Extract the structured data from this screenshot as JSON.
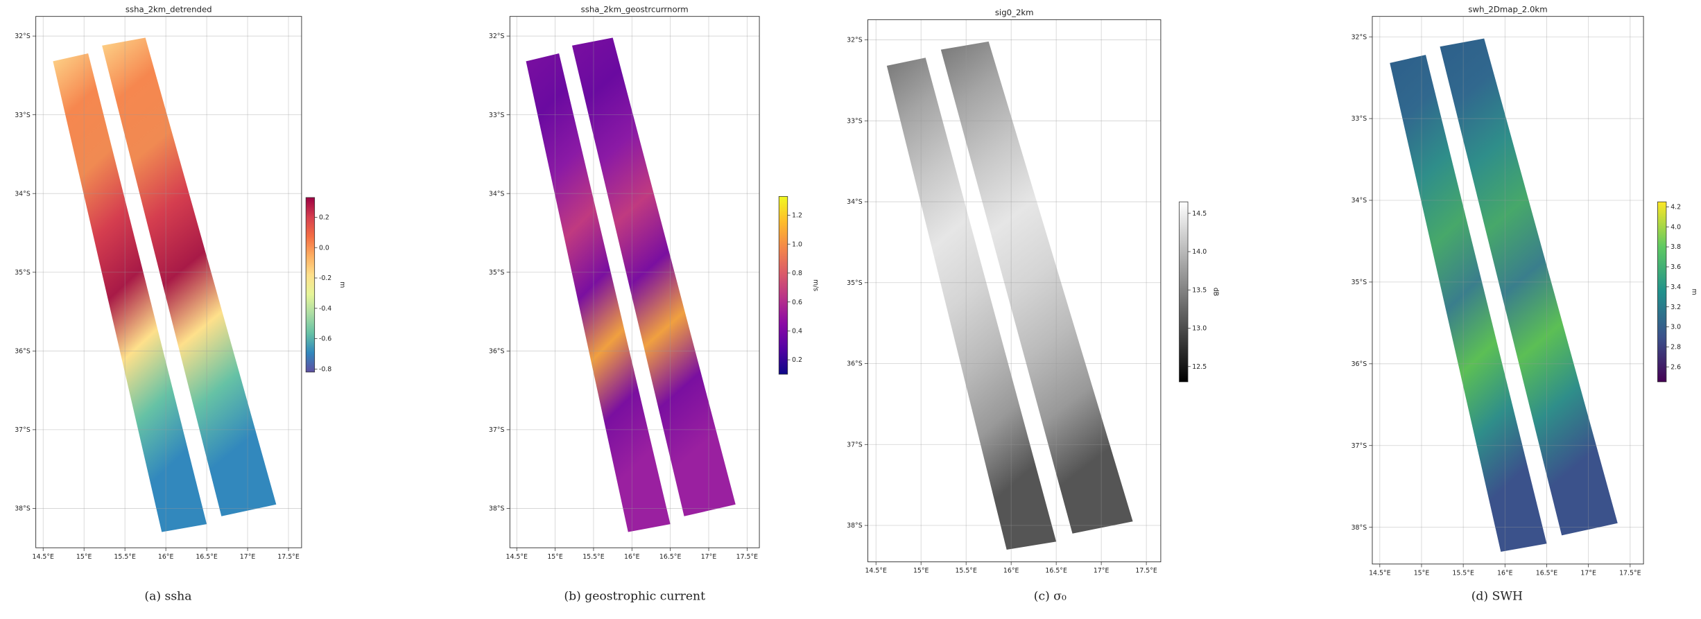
{
  "chart_data": [
    {
      "type": "map",
      "title": "ssha_2km_detrended",
      "caption": "(a) ssha",
      "xlim": [
        14.41,
        17.66
      ],
      "ylim": [
        -38.5,
        -31.75
      ],
      "xticks": [
        {
          "value": 14.5,
          "label": "14.5°E"
        },
        {
          "value": 15,
          "label": "15°E"
        },
        {
          "value": 15.5,
          "label": "15.5°E"
        },
        {
          "value": 16,
          "label": "16°E"
        },
        {
          "value": 16.5,
          "label": "16.5°E"
        },
        {
          "value": 17,
          "label": "17°E"
        },
        {
          "value": 17.5,
          "label": "17.5°E"
        }
      ],
      "yticks": [
        {
          "value": -32,
          "label": "32°S"
        },
        {
          "value": -33,
          "label": "33°S"
        },
        {
          "value": -34,
          "label": "34°S"
        },
        {
          "value": -35,
          "label": "35°S"
        },
        {
          "value": -36,
          "label": "36°S"
        },
        {
          "value": -37,
          "label": "37°S"
        },
        {
          "value": -38,
          "label": "38°S"
        }
      ],
      "grid": true,
      "colorbar": {
        "label": "m",
        "lim": [
          -0.82,
          0.33
        ],
        "ticks": [
          0.2,
          {
            "value": 0,
            "label": "0.0"
          },
          -0.2,
          -0.4,
          -0.6,
          -0.8
        ],
        "colors": [
          "#5e4fa2",
          "#3288bd",
          "#66c2a5",
          "#abdda4",
          "#e6f598",
          "#fee08b",
          "#fdae61",
          "#f46d43",
          "#d53e4f",
          "#9e0142"
        ]
      }
    },
    {
      "type": "map",
      "title": "ssha_2km_geostrcurrnorm",
      "caption": "(b) geostrophic current",
      "xlim": [
        14.41,
        17.66
      ],
      "ylim": [
        -38.5,
        -31.75
      ],
      "xticks": [
        {
          "value": 14.5,
          "label": "14.5°E"
        },
        {
          "value": 15,
          "label": "15°E"
        },
        {
          "value": 15.5,
          "label": "15.5°E"
        },
        {
          "value": 16,
          "label": "16°E"
        },
        {
          "value": 16.5,
          "label": "16.5°E"
        },
        {
          "value": 17,
          "label": "17°E"
        },
        {
          "value": 17.5,
          "label": "17.5°E"
        }
      ],
      "yticks": [
        {
          "value": -32,
          "label": "32°S"
        },
        {
          "value": -33,
          "label": "33°S"
        },
        {
          "value": -34,
          "label": "34°S"
        },
        {
          "value": -35,
          "label": "35°S"
        },
        {
          "value": -36,
          "label": "36°S"
        },
        {
          "value": -37,
          "label": "37°S"
        },
        {
          "value": -38,
          "label": "38°S"
        }
      ],
      "grid": true,
      "colorbar": {
        "label": "m/s",
        "lim": [
          0.1,
          1.33
        ],
        "ticks": [
          0.2,
          0.4,
          0.6,
          0.8,
          {
            "value": 1,
            "label": "1.0"
          },
          1.2
        ],
        "colors": [
          "#0d0887",
          "#5302a3",
          "#8b0aa5",
          "#b83289",
          "#db5c68",
          "#f48849",
          "#febc2a",
          "#f0f921"
        ]
      }
    },
    {
      "type": "map",
      "title": "sig0_2km",
      "caption": "(c) σ₀",
      "xlim": [
        14.41,
        17.66
      ],
      "ylim": [
        -38.45,
        -31.75
      ],
      "xticks": [
        {
          "value": 14.5,
          "label": "14.5°E"
        },
        {
          "value": 15,
          "label": "15°E"
        },
        {
          "value": 15.5,
          "label": "15.5°E"
        },
        {
          "value": 16,
          "label": "16°E"
        },
        {
          "value": 16.5,
          "label": "16.5°E"
        },
        {
          "value": 17,
          "label": "17°E"
        },
        {
          "value": 17.5,
          "label": "17.5°E"
        }
      ],
      "yticks": [
        {
          "value": -32,
          "label": "32°S"
        },
        {
          "value": -33,
          "label": "33°S"
        },
        {
          "value": -34,
          "label": "34°S"
        },
        {
          "value": -35,
          "label": "35°S"
        },
        {
          "value": -36,
          "label": "36°S"
        },
        {
          "value": -37,
          "label": "37°S"
        },
        {
          "value": -38,
          "label": "38°S"
        }
      ],
      "grid": true,
      "colorbar": {
        "label": "dB",
        "lim": [
          12.3,
          14.65
        ],
        "ticks": [
          12.5,
          {
            "value": 13,
            "label": "13.0"
          },
          13.5,
          {
            "value": 14,
            "label": "14.0"
          },
          14.5
        ],
        "colors": [
          "#000000",
          "#555555",
          "#aaaaaa",
          "#ffffff"
        ]
      }
    },
    {
      "type": "map",
      "title": "swh_2Dmap_2.0km",
      "caption": "(d) SWH",
      "xlim": [
        14.41,
        17.66
      ],
      "ylim": [
        -38.45,
        -31.75
      ],
      "xticks": [
        {
          "value": 14.5,
          "label": "14.5°E"
        },
        {
          "value": 15,
          "label": "15°E"
        },
        {
          "value": 15.5,
          "label": "15.5°E"
        },
        {
          "value": 16,
          "label": "16°E"
        },
        {
          "value": 16.5,
          "label": "16.5°E"
        },
        {
          "value": 17,
          "label": "17°E"
        },
        {
          "value": 17.5,
          "label": "17.5°E"
        }
      ],
      "yticks": [
        {
          "value": -32,
          "label": "32°S"
        },
        {
          "value": -33,
          "label": "33°S"
        },
        {
          "value": -34,
          "label": "34°S"
        },
        {
          "value": -35,
          "label": "35°S"
        },
        {
          "value": -36,
          "label": "36°S"
        },
        {
          "value": -37,
          "label": "37°S"
        },
        {
          "value": -38,
          "label": "38°S"
        }
      ],
      "grid": true,
      "colorbar": {
        "label": "m",
        "lim": [
          2.45,
          4.25
        ],
        "ticks": [
          2.6,
          2.8,
          {
            "value": 3,
            "label": "3.0"
          },
          3.2,
          3.4,
          3.6,
          3.8,
          {
            "value": 4,
            "label": "4.0"
          },
          4.2
        ],
        "colors": [
          "#440154",
          "#3b528b",
          "#21918c",
          "#5ec962",
          "#fde725"
        ]
      }
    }
  ]
}
